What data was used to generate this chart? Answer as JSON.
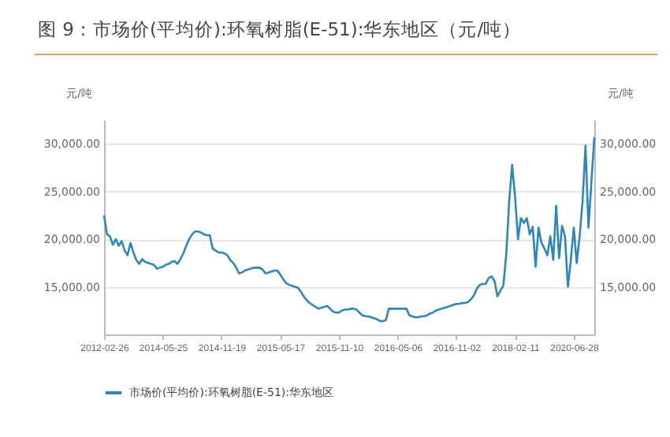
{
  "chart_data": {
    "type": "line",
    "title": "图 9：市场价(平均价):环氧树脂(E-51):华东地区（元/吨）",
    "ylabel": "元/吨",
    "y2label": "元/吨",
    "categories": [
      "2012-02-26",
      null,
      null,
      null,
      null,
      null,
      null,
      null,
      null,
      null,
      null,
      null,
      null,
      null,
      null,
      null,
      null,
      null,
      null,
      null,
      "2014-05-25",
      null,
      null,
      null,
      null,
      null,
      null,
      null,
      null,
      null,
      null,
      null,
      null,
      null,
      null,
      null,
      null,
      null,
      null,
      null,
      "2014-11-19",
      null,
      null,
      null,
      null,
      null,
      null,
      null,
      null,
      null,
      null,
      null,
      null,
      null,
      null,
      null,
      null,
      null,
      null,
      null,
      "2015-05-17",
      null,
      null,
      null,
      null,
      null,
      null,
      null,
      null,
      null,
      null,
      null,
      null,
      null,
      null,
      null,
      null,
      null,
      null,
      null,
      "2015-11-10",
      null,
      null,
      null,
      null,
      null,
      null,
      null,
      null,
      null,
      null,
      null,
      null,
      null,
      null,
      null,
      null,
      null,
      null,
      null,
      "2016-05-06",
      null,
      null,
      null,
      null,
      null,
      null,
      null,
      null,
      null,
      null,
      null,
      null,
      null,
      null,
      null,
      null,
      null,
      null,
      null,
      "2016-11-02",
      null,
      null,
      null,
      null,
      null,
      null,
      null,
      null,
      null,
      null,
      null,
      null,
      null,
      null,
      null,
      null,
      null,
      null,
      null,
      "2018-02-11",
      null,
      null,
      null,
      null,
      null,
      null,
      null,
      null,
      null,
      null,
      null,
      null,
      null,
      null,
      null,
      null,
      null,
      null,
      null,
      "2020-06-28",
      null,
      null,
      null,
      null,
      null,
      null,
      null
    ],
    "series": [
      {
        "name": "市场价(平均价):环氧树脂(E-51):华东地区",
        "color": "#2f86b9",
        "values": [
          22500,
          20500,
          20300,
          19400,
          20000,
          19300,
          19800,
          18800,
          18300,
          19600,
          18600,
          17800,
          17400,
          17900,
          17600,
          17500,
          17400,
          17300,
          16900,
          17000,
          17100,
          17300,
          17400,
          17600,
          17700,
          17400,
          17900,
          18500,
          19300,
          20000,
          20500,
          20800,
          20800,
          20700,
          20500,
          20400,
          20400,
          19000,
          18800,
          18600,
          18600,
          18500,
          18300,
          17800,
          17500,
          17000,
          16400,
          16500,
          16700,
          16800,
          16900,
          17000,
          17000,
          17000,
          16800,
          16400,
          16500,
          16600,
          16700,
          16700,
          16300,
          15800,
          15400,
          15200,
          15100,
          15000,
          14900,
          14500,
          14000,
          13600,
          13300,
          13100,
          12900,
          12700,
          12800,
          12900,
          13000,
          12700,
          12400,
          12300,
          12300,
          12500,
          12600,
          12600,
          12700,
          12700,
          12600,
          12300,
          12000,
          11900,
          11900,
          11800,
          11700,
          11600,
          11400,
          11400,
          11500,
          12700,
          12700,
          12700,
          12700,
          12700,
          12700,
          12700,
          12000,
          11900,
          11800,
          11800,
          11900,
          11900,
          12000,
          12200,
          12300,
          12500,
          12600,
          12700,
          12800,
          12900,
          13000,
          13100,
          13200,
          13200,
          13300,
          13300,
          13400,
          13700,
          14100,
          14800,
          15200,
          15300,
          15300,
          15900,
          16100,
          15600,
          14000,
          14600,
          15100,
          18400,
          24000,
          27800,
          24400,
          20000,
          22200,
          21700,
          22200,
          20500,
          21300,
          17100,
          21200,
          19600,
          19000,
          18300,
          20300,
          17800,
          23500,
          18000,
          21400,
          20300,
          15000,
          17800,
          21200,
          17500,
          20300,
          24000,
          29800,
          21200,
          26000,
          30700
        ]
      }
    ],
    "ylim": [
      10000,
      32500
    ],
    "yticks": [
      {
        "value": 15000,
        "label": "15,000.00"
      },
      {
        "value": 20000,
        "label": "20,000.00"
      },
      {
        "value": 25000,
        "label": "25,000.00"
      },
      {
        "value": 30000,
        "label": "30,000.00"
      }
    ],
    "y2lim": [
      10000,
      32500
    ],
    "y2ticks": [
      {
        "value": 15000,
        "label": "15,000.00"
      },
      {
        "value": 20000,
        "label": "20,000.00"
      },
      {
        "value": 25000,
        "label": "25,000.00"
      },
      {
        "value": 30000,
        "label": "30,000.00"
      }
    ],
    "grid": "y",
    "legend": "bottom"
  }
}
